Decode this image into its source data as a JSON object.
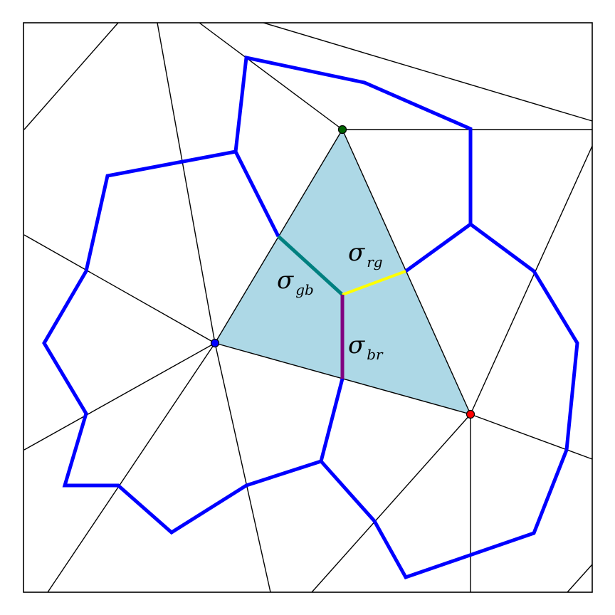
{
  "colors": {
    "triangle_fill": "#add8e6",
    "curve": "#0000ff",
    "edge_gb": "#008080",
    "edge_rg": "#ffff00",
    "edge_br": "#800080",
    "vertex_green": "#006400",
    "vertex_blue": "#0000ff",
    "vertex_red": "#ff0000",
    "lines": "#000000",
    "frame": "#000000"
  },
  "labels": {
    "rg": {
      "symbol": "σ",
      "subscript": "rg"
    },
    "gb": {
      "symbol": "σ",
      "subscript": "gb"
    },
    "br": {
      "symbol": "σ",
      "subscript": "br"
    }
  },
  "vertices": [
    {
      "name": "green-vertex",
      "color": "vertex_green"
    },
    {
      "name": "blue-vertex",
      "color": "vertex_blue"
    },
    {
      "name": "red-vertex",
      "color": "vertex_red"
    }
  ]
}
